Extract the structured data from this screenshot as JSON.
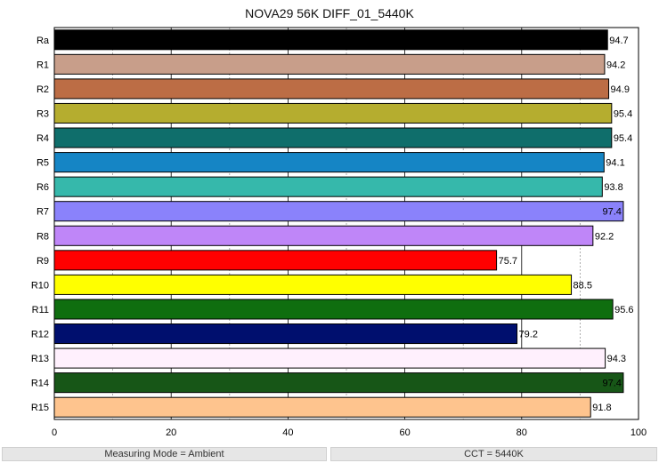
{
  "chart_data": {
    "type": "bar",
    "orientation": "horizontal",
    "title": "NOVA29 56K DIFF_01_5440K",
    "xlim": [
      0,
      100
    ],
    "x_ticks": [
      0,
      20,
      40,
      60,
      80,
      100
    ],
    "grid": true,
    "categories": [
      "Ra",
      "R1",
      "R2",
      "R3",
      "R4",
      "R5",
      "R6",
      "R7",
      "R8",
      "R9",
      "R10",
      "R11",
      "R12",
      "R13",
      "R14",
      "R15"
    ],
    "values": [
      94.7,
      94.2,
      94.9,
      95.4,
      95.4,
      94.1,
      93.8,
      97.4,
      92.2,
      75.7,
      88.5,
      95.6,
      79.2,
      94.3,
      97.4,
      91.8
    ],
    "value_labels": [
      "94.7",
      "94.2",
      "94.9",
      "95.4",
      "95.4",
      "94.1",
      "93.8",
      "97.4",
      "92.2",
      "75.7",
      "88.5",
      "95.6",
      "79.2",
      "94.3",
      "97.4",
      "91.8"
    ],
    "colors": [
      "#000000",
      "#c89e8a",
      "#bc6d45",
      "#b5ad2f",
      "#0f6e6b",
      "#1585c5",
      "#36b8ab",
      "#8a82fb",
      "#bf86f8",
      "#ff0000",
      "#ffff00",
      "#0f6e0f",
      "#000f6e",
      "#fff0fd",
      "#175617",
      "#fec48e"
    ],
    "label_inside": [
      false,
      false,
      false,
      false,
      false,
      false,
      false,
      true,
      false,
      false,
      false,
      false,
      false,
      false,
      true,
      false
    ]
  },
  "footer": {
    "left": "Measuring Mode = Ambient",
    "right": "CCT = 5440K"
  }
}
